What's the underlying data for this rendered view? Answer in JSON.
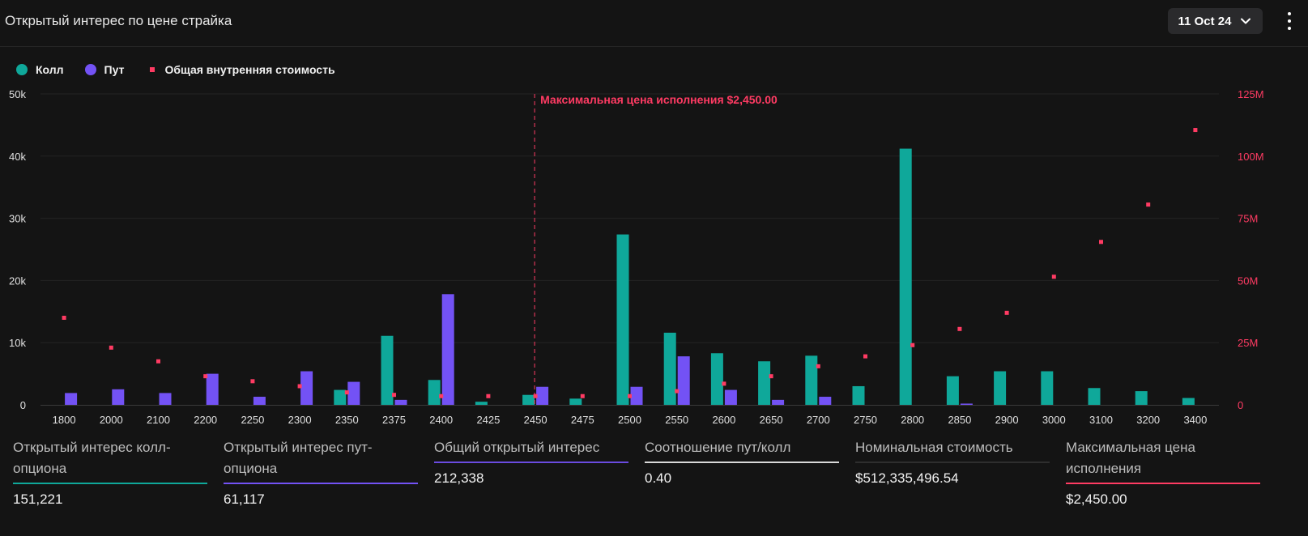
{
  "header": {
    "title": "Открытый интерес по цене страйка",
    "date_label": "11 Oct 24"
  },
  "legend": [
    {
      "label": "Колл",
      "color": "#0fa89a",
      "shape": "circle"
    },
    {
      "label": "Пут",
      "color": "#7352f5",
      "shape": "circle"
    },
    {
      "label": "Общая внутренняя стоимость",
      "color": "#ff3b63",
      "shape": "square"
    }
  ],
  "chart_data": {
    "type": "bar",
    "categories": [
      "1800",
      "2000",
      "2100",
      "2200",
      "2250",
      "2300",
      "2350",
      "2375",
      "2400",
      "2425",
      "2450",
      "2475",
      "2500",
      "2550",
      "2600",
      "2650",
      "2700",
      "2750",
      "2800",
      "2850",
      "2900",
      "3000",
      "3100",
      "3200",
      "3400"
    ],
    "series": [
      {
        "name": "Колл",
        "type": "bar",
        "axis": "left",
        "color": "#0fa89a",
        "values": [
          0,
          0,
          0,
          0,
          0,
          0,
          2400,
          11100,
          4000,
          500,
          1600,
          1000,
          27400,
          11600,
          8300,
          7000,
          7900,
          3000,
          41200,
          4600,
          5400,
          5400,
          2700,
          2200,
          1100
        ]
      },
      {
        "name": "Пут",
        "type": "bar",
        "axis": "left",
        "color": "#7352f5",
        "values": [
          1900,
          2500,
          1900,
          5000,
          1300,
          5400,
          3700,
          800,
          17800,
          0,
          2900,
          0,
          2900,
          7800,
          2400,
          800,
          1300,
          0,
          0,
          200,
          0,
          0,
          0,
          0,
          0
        ]
      },
      {
        "name": "Общая внутренняя стоимость",
        "type": "scatter",
        "axis": "right",
        "color": "#ff3b63",
        "values": [
          35000000,
          23000000,
          17500000,
          11500000,
          9500000,
          7500000,
          5000000,
          4000000,
          3500000,
          3500000,
          3500000,
          3500000,
          3500000,
          5500000,
          8500000,
          11500000,
          15500000,
          19500000,
          24000000,
          30500000,
          37000000,
          51500000,
          65500000,
          80500000,
          110500000
        ]
      }
    ],
    "y_left": {
      "ylim": [
        0,
        50000
      ],
      "ticks": [
        "0",
        "10k",
        "20k",
        "30k",
        "40k",
        "50k"
      ]
    },
    "y_right": {
      "ylim": [
        0,
        125000000
      ],
      "ticks": [
        "0",
        "25M",
        "50M",
        "75M",
        "100M",
        "125M"
      ]
    },
    "max_pain": {
      "category": "2450",
      "label": "Максимальная цена исполнения $2,450.00",
      "color": "#ff3b63"
    },
    "grid": true,
    "legend_position": "top-left"
  },
  "stats": [
    {
      "label": "Открытый интерес колл-опциона",
      "value": "151,221",
      "color": "#0fa89a"
    },
    {
      "label": "Открытый интерес пут-опциона",
      "value": "61,117",
      "color": "#7352f5"
    },
    {
      "label": "Общий открытый интерес",
      "value": "212,338",
      "color": "#6a4be0"
    },
    {
      "label": "Соотношение пут/колл",
      "value": "0.40",
      "color": "#d9d9d9"
    },
    {
      "label": "Номинальная стоимость",
      "value": "$512,335,496.54",
      "color": "#2e2e2e"
    },
    {
      "label": "Максимальная цена исполнения",
      "value": "$2,450.00",
      "color": "#ff3b63"
    }
  ]
}
